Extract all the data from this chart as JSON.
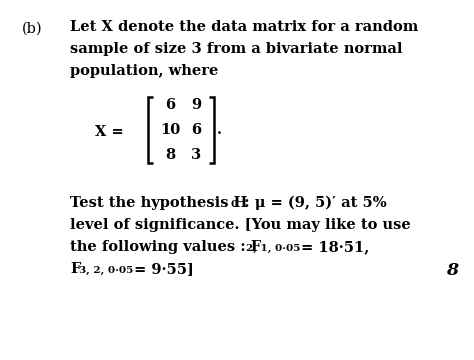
{
  "bg_color": "#ffffff",
  "label_b": "(b)",
  "line1": "Let X denote the data matrix for a random",
  "line2": "sample of size 3 from a bivariate normal",
  "line3": "population, where",
  "matrix": [
    [
      6,
      9
    ],
    [
      10,
      6
    ],
    [
      8,
      3
    ]
  ],
  "test_line1a": "Test the hypothesis H",
  "test_line1b": "0",
  "test_line1c": " : μ = (9, 5)′ at 5%",
  "test_line2": "level of significance. [You may like to use",
  "test_line3a": "the following values : F",
  "test_line3b": "2, 1, 0·05",
  "test_line3c": " = 18·51,",
  "test_line4a": "F",
  "test_line4b": "3, 2, 0·05",
  "test_line4c": " = 9·55]",
  "page_num": "8",
  "font_size_main": 10.5,
  "font_size_sub": 7.5,
  "font_family": "DejaVu Serif"
}
